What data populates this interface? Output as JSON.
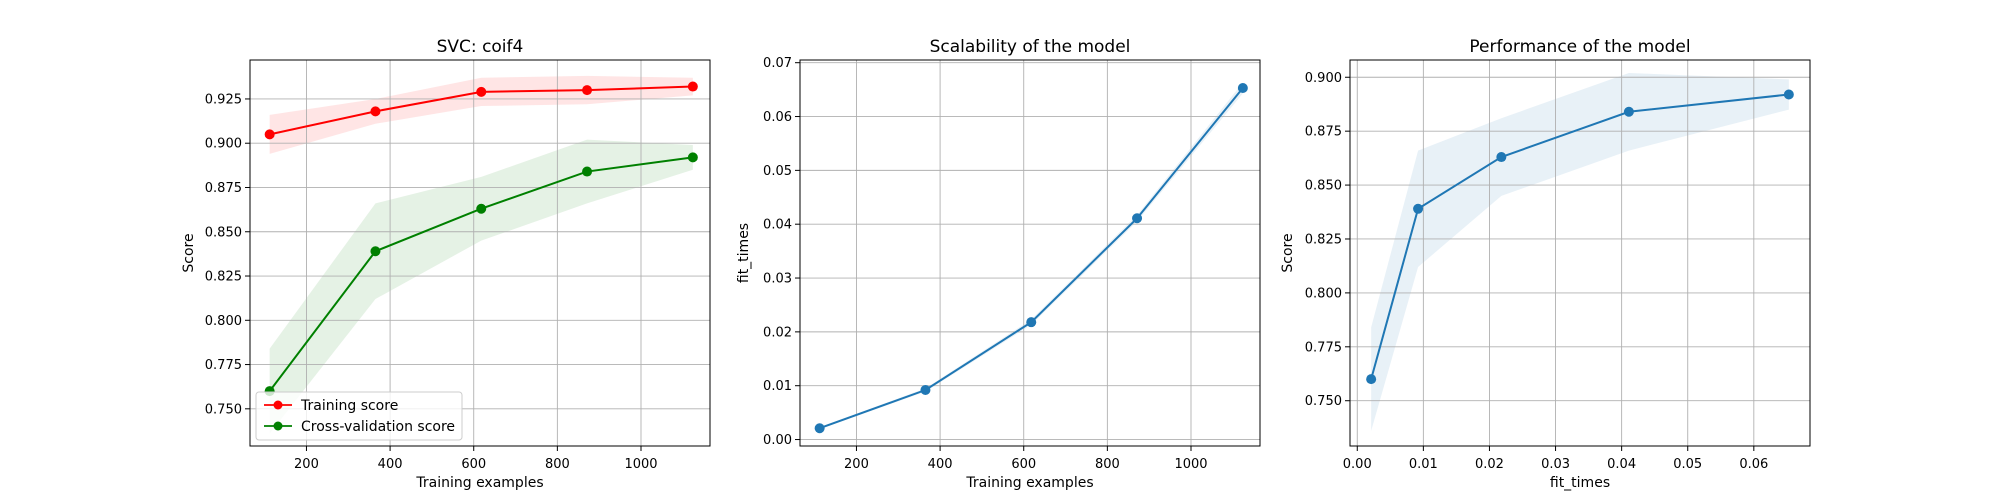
{
  "chart_data": [
    {
      "type": "line",
      "title": "SVC: coif4",
      "xlabel": "Training examples",
      "ylabel": "Score",
      "xlim": [
        65,
        1165
      ],
      "ylim": [
        0.729,
        0.947
      ],
      "xticks": [
        200,
        400,
        600,
        800,
        1000
      ],
      "yticks": [
        0.75,
        0.775,
        0.8,
        0.825,
        0.85,
        0.875,
        0.9,
        0.925
      ],
      "grid": true,
      "legend": "lower-left",
      "x": [
        112,
        365,
        618,
        871,
        1124
      ],
      "series": [
        {
          "name": "Training score",
          "color": "#ff0000",
          "values": [
            0.905,
            0.918,
            0.929,
            0.93,
            0.932
          ],
          "band_low": [
            0.894,
            0.911,
            0.921,
            0.922,
            0.927
          ],
          "band_high": [
            0.916,
            0.925,
            0.937,
            0.938,
            0.937
          ]
        },
        {
          "name": "Cross-validation score",
          "color": "#008000",
          "values": [
            0.76,
            0.839,
            0.863,
            0.884,
            0.892
          ],
          "band_low": [
            0.736,
            0.812,
            0.845,
            0.866,
            0.885
          ],
          "band_high": [
            0.784,
            0.866,
            0.881,
            0.902,
            0.899
          ]
        }
      ]
    },
    {
      "type": "line",
      "title": "Scalability of the model",
      "xlabel": "Training examples",
      "ylabel": "fit_times",
      "xlim": [
        65,
        1165
      ],
      "ylim": [
        -0.0012,
        0.0705
      ],
      "xticks": [
        200,
        400,
        600,
        800,
        1000
      ],
      "yticks": [
        0.0,
        0.01,
        0.02,
        0.03,
        0.04,
        0.05,
        0.06,
        0.07
      ],
      "grid": true,
      "x": [
        112,
        365,
        618,
        871,
        1124
      ],
      "series": [
        {
          "color": "#1f77b4",
          "values": [
            0.0021,
            0.0092,
            0.0218,
            0.0411,
            0.0653
          ],
          "band_low": [
            0.0019,
            0.0089,
            0.0213,
            0.0405,
            0.0643
          ],
          "band_high": [
            0.0023,
            0.0095,
            0.0223,
            0.0417,
            0.0663
          ]
        }
      ]
    },
    {
      "type": "line",
      "title": "Performance of the model",
      "xlabel": "fit_times",
      "ylabel": "Score",
      "xlim": [
        -0.0011,
        0.0685
      ],
      "ylim": [
        0.729,
        0.908
      ],
      "xticks": [
        0.0,
        0.01,
        0.02,
        0.03,
        0.04,
        0.05,
        0.06
      ],
      "yticks": [
        0.75,
        0.775,
        0.8,
        0.825,
        0.85,
        0.875,
        0.9
      ],
      "grid": true,
      "x": [
        0.0021,
        0.0092,
        0.0218,
        0.0411,
        0.0653
      ],
      "series": [
        {
          "color": "#1f77b4",
          "values": [
            0.76,
            0.839,
            0.863,
            0.884,
            0.892
          ],
          "band_low": [
            0.736,
            0.812,
            0.845,
            0.866,
            0.885
          ],
          "band_high": [
            0.784,
            0.866,
            0.881,
            0.902,
            0.899
          ]
        }
      ]
    }
  ]
}
